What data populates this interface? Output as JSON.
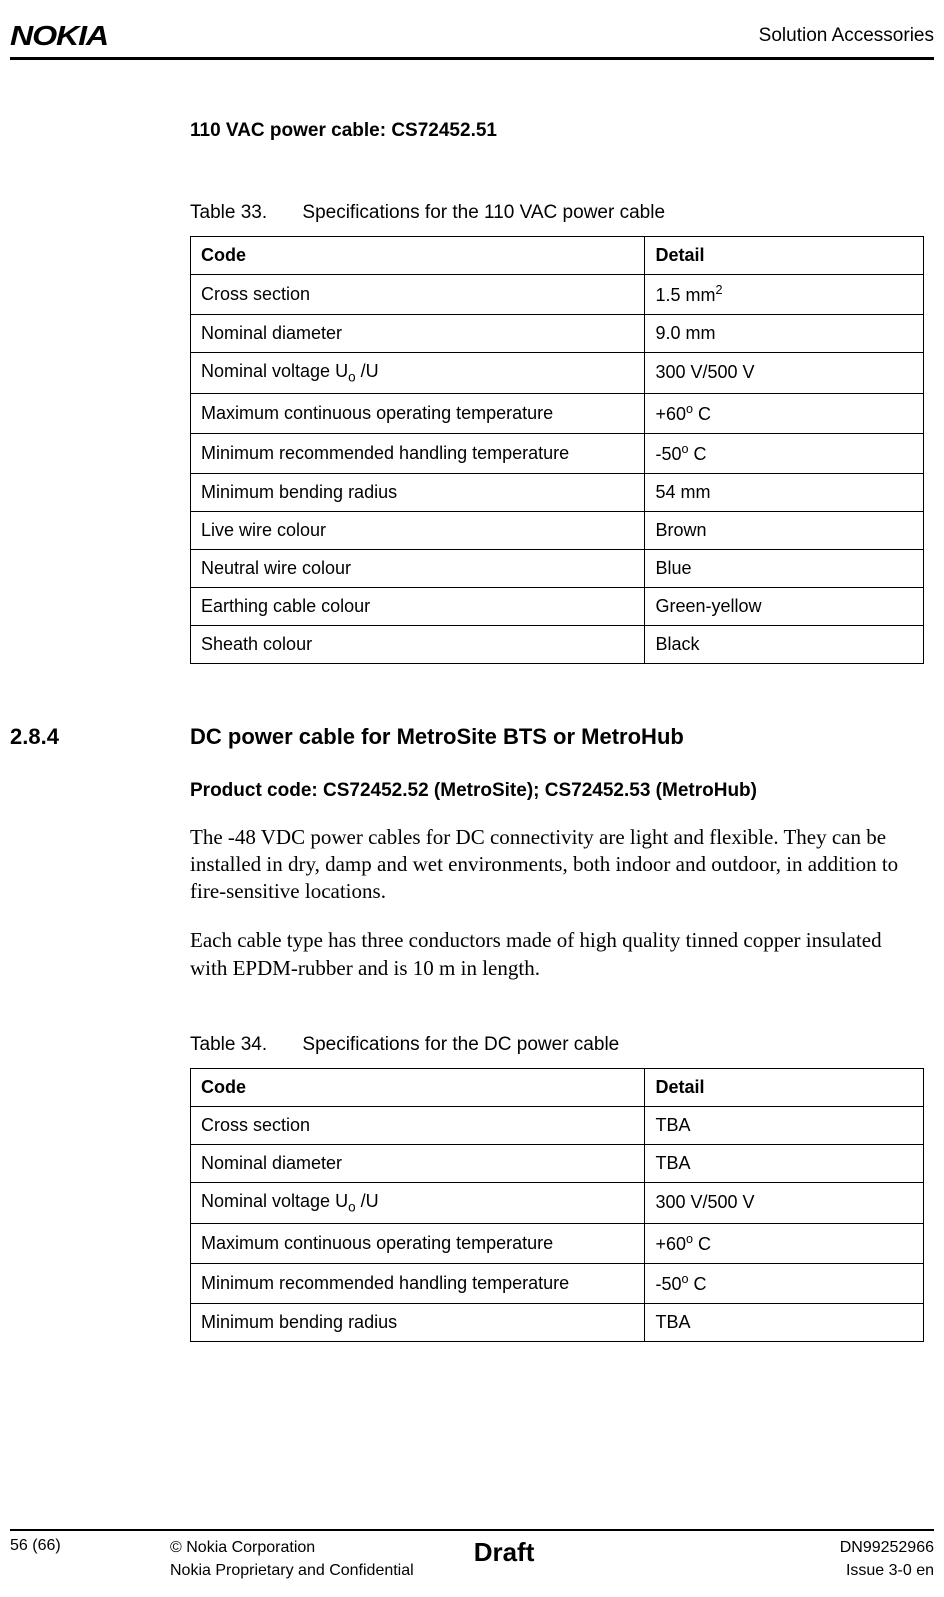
{
  "header": {
    "logo": "NOKIA",
    "right": "Solution Accessories"
  },
  "section1": {
    "heading": "110 VAC power cable: CS72452.51"
  },
  "table33": {
    "caption_num": "Table 33.",
    "caption_title": "Specifications for the 110 VAC power cable",
    "header_code": "Code",
    "header_detail": "Detail",
    "rows": [
      {
        "code": "Cross section",
        "detail_pre": "1.5 mm",
        "detail_sup": "2"
      },
      {
        "code": "Nominal diameter",
        "detail": "9.0 mm"
      },
      {
        "code_pre": "Nominal voltage U",
        "code_sub": "o",
        "code_post": " /U",
        "detail": "300 V/500 V"
      },
      {
        "code": "Maximum continuous operating temperature",
        "detail_pre": "+60",
        "detail_sup": "o",
        "detail_post": " C"
      },
      {
        "code": "Minimum recommended handling temperature",
        "detail_pre": "-50",
        "detail_sup": "o",
        "detail_post": " C"
      },
      {
        "code": "Minimum bending radius",
        "detail": "54 mm"
      },
      {
        "code": "Live wire colour",
        "detail": "Brown"
      },
      {
        "code": "Neutral wire colour",
        "detail": "Blue"
      },
      {
        "code": "Earthing cable colour",
        "detail": "Green-yellow"
      },
      {
        "code": "Sheath colour",
        "detail": "Black"
      }
    ]
  },
  "section284": {
    "number": "2.8.4",
    "title": "DC power cable for MetroSite BTS or MetroHub",
    "product_code": "Product code: CS72452.52 (MetroSite); CS72452.53 (MetroHub)",
    "para1": "The -48 VDC power cables for DC connectivity are light and flexible. They can be installed in dry, damp and wet environments, both indoor and outdoor, in addition to fire-sensitive locations.",
    "para2": "Each cable type has three conductors made of high quality tinned copper insulated with EPDM-rubber and is 10 m in length."
  },
  "table34": {
    "caption_num": "Table 34.",
    "caption_title": "Specifications for the DC power cable",
    "header_code": "Code",
    "header_detail": "Detail",
    "rows": [
      {
        "code": "Cross section",
        "detail": "TBA"
      },
      {
        "code": "Nominal diameter",
        "detail": "TBA"
      },
      {
        "code_pre": "Nominal voltage U",
        "code_sub": "o",
        "code_post": " /U",
        "detail": "300 V/500 V"
      },
      {
        "code": "Maximum continuous operating temperature",
        "detail_pre": "+60",
        "detail_sup": "o",
        "detail_post": " C"
      },
      {
        "code": "Minimum recommended handling temperature",
        "detail_pre": "-50",
        "detail_sup": "o",
        "detail_post": " C"
      },
      {
        "code": "Minimum bending radius",
        "detail": "TBA"
      }
    ]
  },
  "footer": {
    "page": "56 (66)",
    "copyright": "© Nokia Corporation",
    "confidential": "Nokia Proprietary and Confidential",
    "draft": "Draft",
    "docnum": "DN99252966",
    "issue": "Issue 3-0 en"
  }
}
